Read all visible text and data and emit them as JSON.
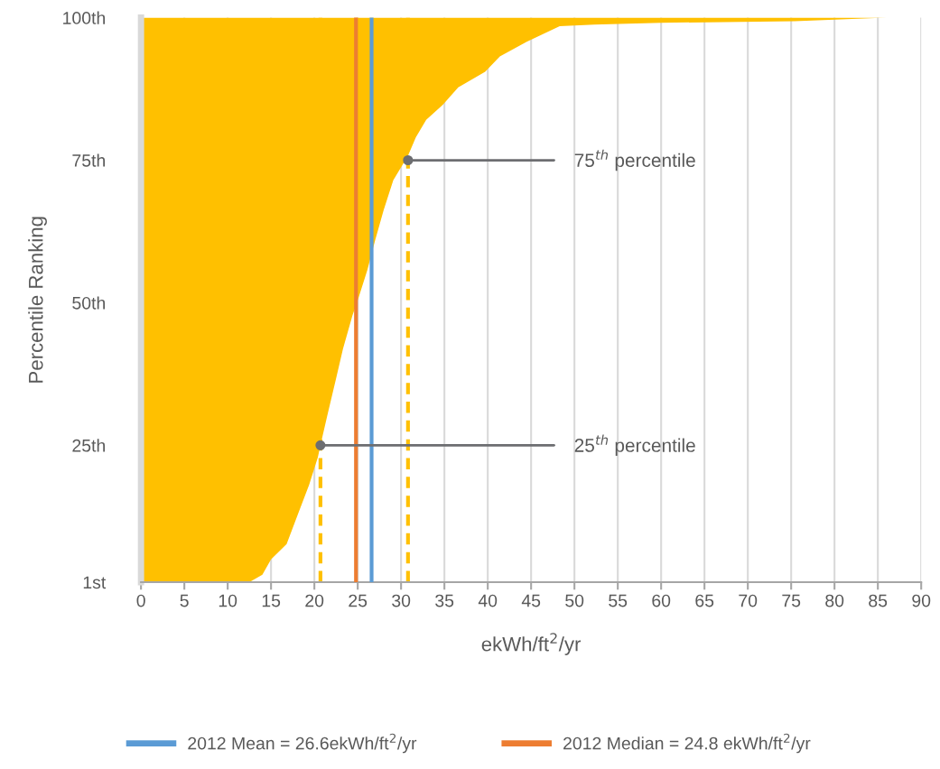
{
  "chart_data": {
    "type": "area",
    "orientation": "horizontal",
    "xlabel": "ekWh/ft$^{2}$/yr",
    "ylabel": "Percentile Ranking",
    "series": [
      {
        "color": "#ffc000",
        "x": [
          1,
          2.3,
          5,
          7.7,
          12.9,
          18.1,
          22.9,
          25,
          30.3,
          36.7,
          41.9,
          47.8,
          50.9,
          55.7,
          60.9,
          66.3,
          71.5,
          75.8,
          79,
          82.1,
          84.7,
          87.8,
          90.5,
          93.2,
          95.8,
          98.5,
          98.8,
          99.1,
          99.4,
          100
        ],
        "values": [
          12.5,
          14.0,
          15.0,
          16.8,
          18.1,
          19.4,
          20.4,
          20.7,
          21.5,
          22.5,
          23.3,
          24.4,
          25.1,
          26.1,
          27.0,
          28.0,
          29.1,
          30.8,
          31.7,
          32.9,
          34.8,
          36.6,
          39.7,
          41.4,
          44.5,
          48.3,
          52.3,
          60,
          75.4,
          86
        ]
      }
    ],
    "xlim": [
      0,
      90
    ],
    "xticks": [
      0,
      5,
      10,
      15,
      20,
      25,
      30,
      35,
      40,
      45,
      50,
      55,
      60,
      65,
      70,
      75,
      80,
      85,
      90
    ],
    "ylim": [
      1,
      100
    ],
    "yticks": [
      {
        "value": 1,
        "label": "1st"
      },
      {
        "value": 25,
        "label": "25th"
      },
      {
        "value": 50,
        "label": "50th"
      },
      {
        "value": 75,
        "label": "75th"
      },
      {
        "value": 100,
        "label": "100th"
      }
    ],
    "ref_lines": [
      {
        "axis": "x",
        "value": 26.6,
        "label": "2012 Mean = 26.6ekWh/ft$^{2}$/yr",
        "color": "#5b9bd5",
        "line_style": "solid"
      },
      {
        "axis": "x",
        "value": 24.8,
        "label": "2012 Median = 24.8 ekWh/ft$^{2}$/yr",
        "color": "#ed7d31",
        "line_style": "solid"
      },
      {
        "axis": "x",
        "value": 20.7,
        "color": "#ffc000",
        "line_style": "dashed"
      },
      {
        "axis": "x",
        "value": 30.8,
        "color": "#ffc000",
        "line_style": "dashed"
      }
    ],
    "annotations": [
      {
        "text": "75$^{th}$ percentile",
        "x": 30.8,
        "y": 75
      },
      {
        "text": "25$^{th}$ percentile",
        "x": 20.7,
        "y": 25
      }
    ],
    "grid": "x",
    "legend": "bottom"
  }
}
